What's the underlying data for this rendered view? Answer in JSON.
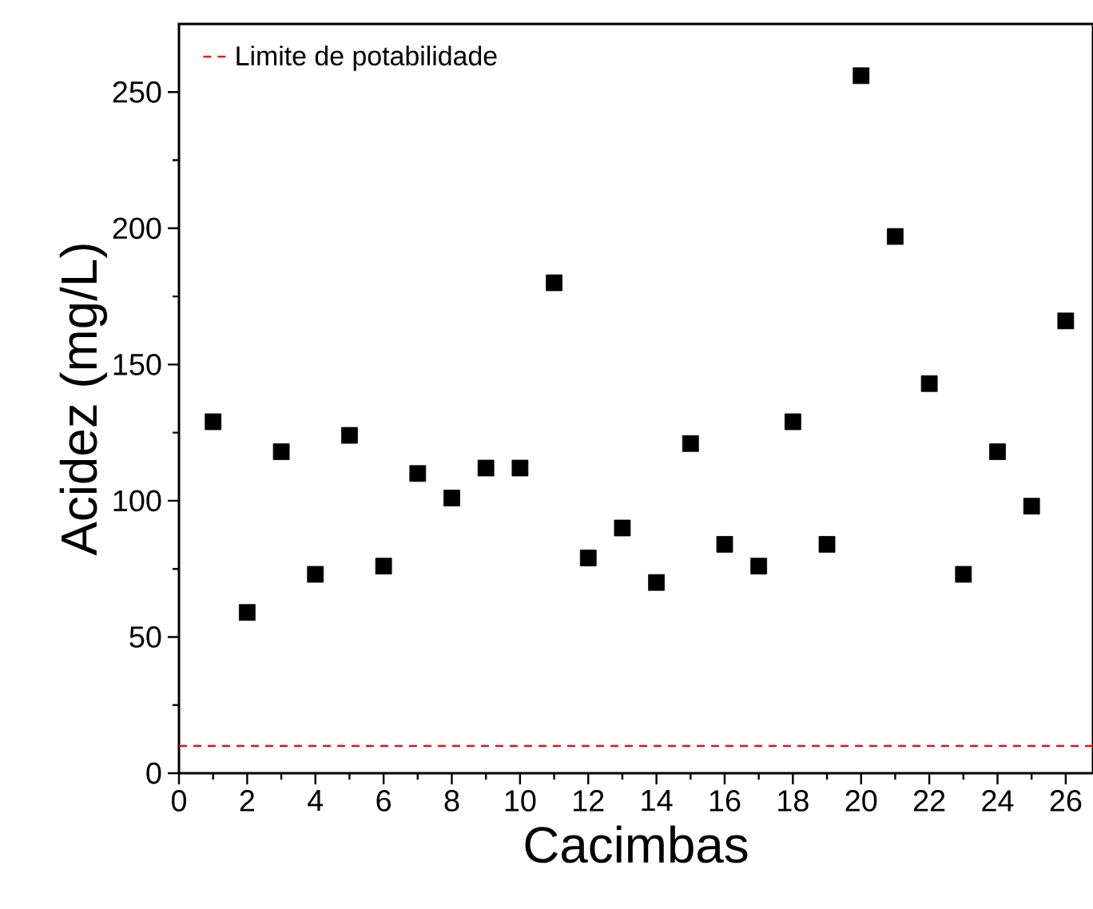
{
  "chart_data": {
    "type": "scatter",
    "xlabel": "Cacimbas",
    "ylabel": "Acidez (mg/L)",
    "x": [
      1,
      2,
      3,
      4,
      5,
      6,
      7,
      8,
      9,
      10,
      11,
      12,
      13,
      14,
      15,
      16,
      17,
      18,
      19,
      20,
      21,
      22,
      23,
      24,
      25,
      26
    ],
    "series": [
      {
        "color": "#000000",
        "values": [
          129,
          59,
          118,
          73,
          124,
          76,
          110,
          101,
          112,
          112,
          180,
          79,
          90,
          70,
          121,
          84,
          76,
          129,
          84,
          256,
          197,
          143,
          73,
          118,
          98,
          166
        ]
      }
    ],
    "marker": "square",
    "xlim": [
      0,
      26.8
    ],
    "xticks": [
      0,
      2,
      4,
      6,
      8,
      10,
      12,
      14,
      16,
      18,
      20,
      22,
      24,
      26
    ],
    "ylim": [
      0,
      275
    ],
    "yticks": [
      0,
      50,
      100,
      150,
      200,
      250
    ],
    "ref_lines": [
      {
        "axis": "y",
        "value": 10,
        "label": "Limite  de potabilidade",
        "color": "#ff0000",
        "line_style": "dashed"
      }
    ],
    "legend": "top left",
    "grid": false
  }
}
